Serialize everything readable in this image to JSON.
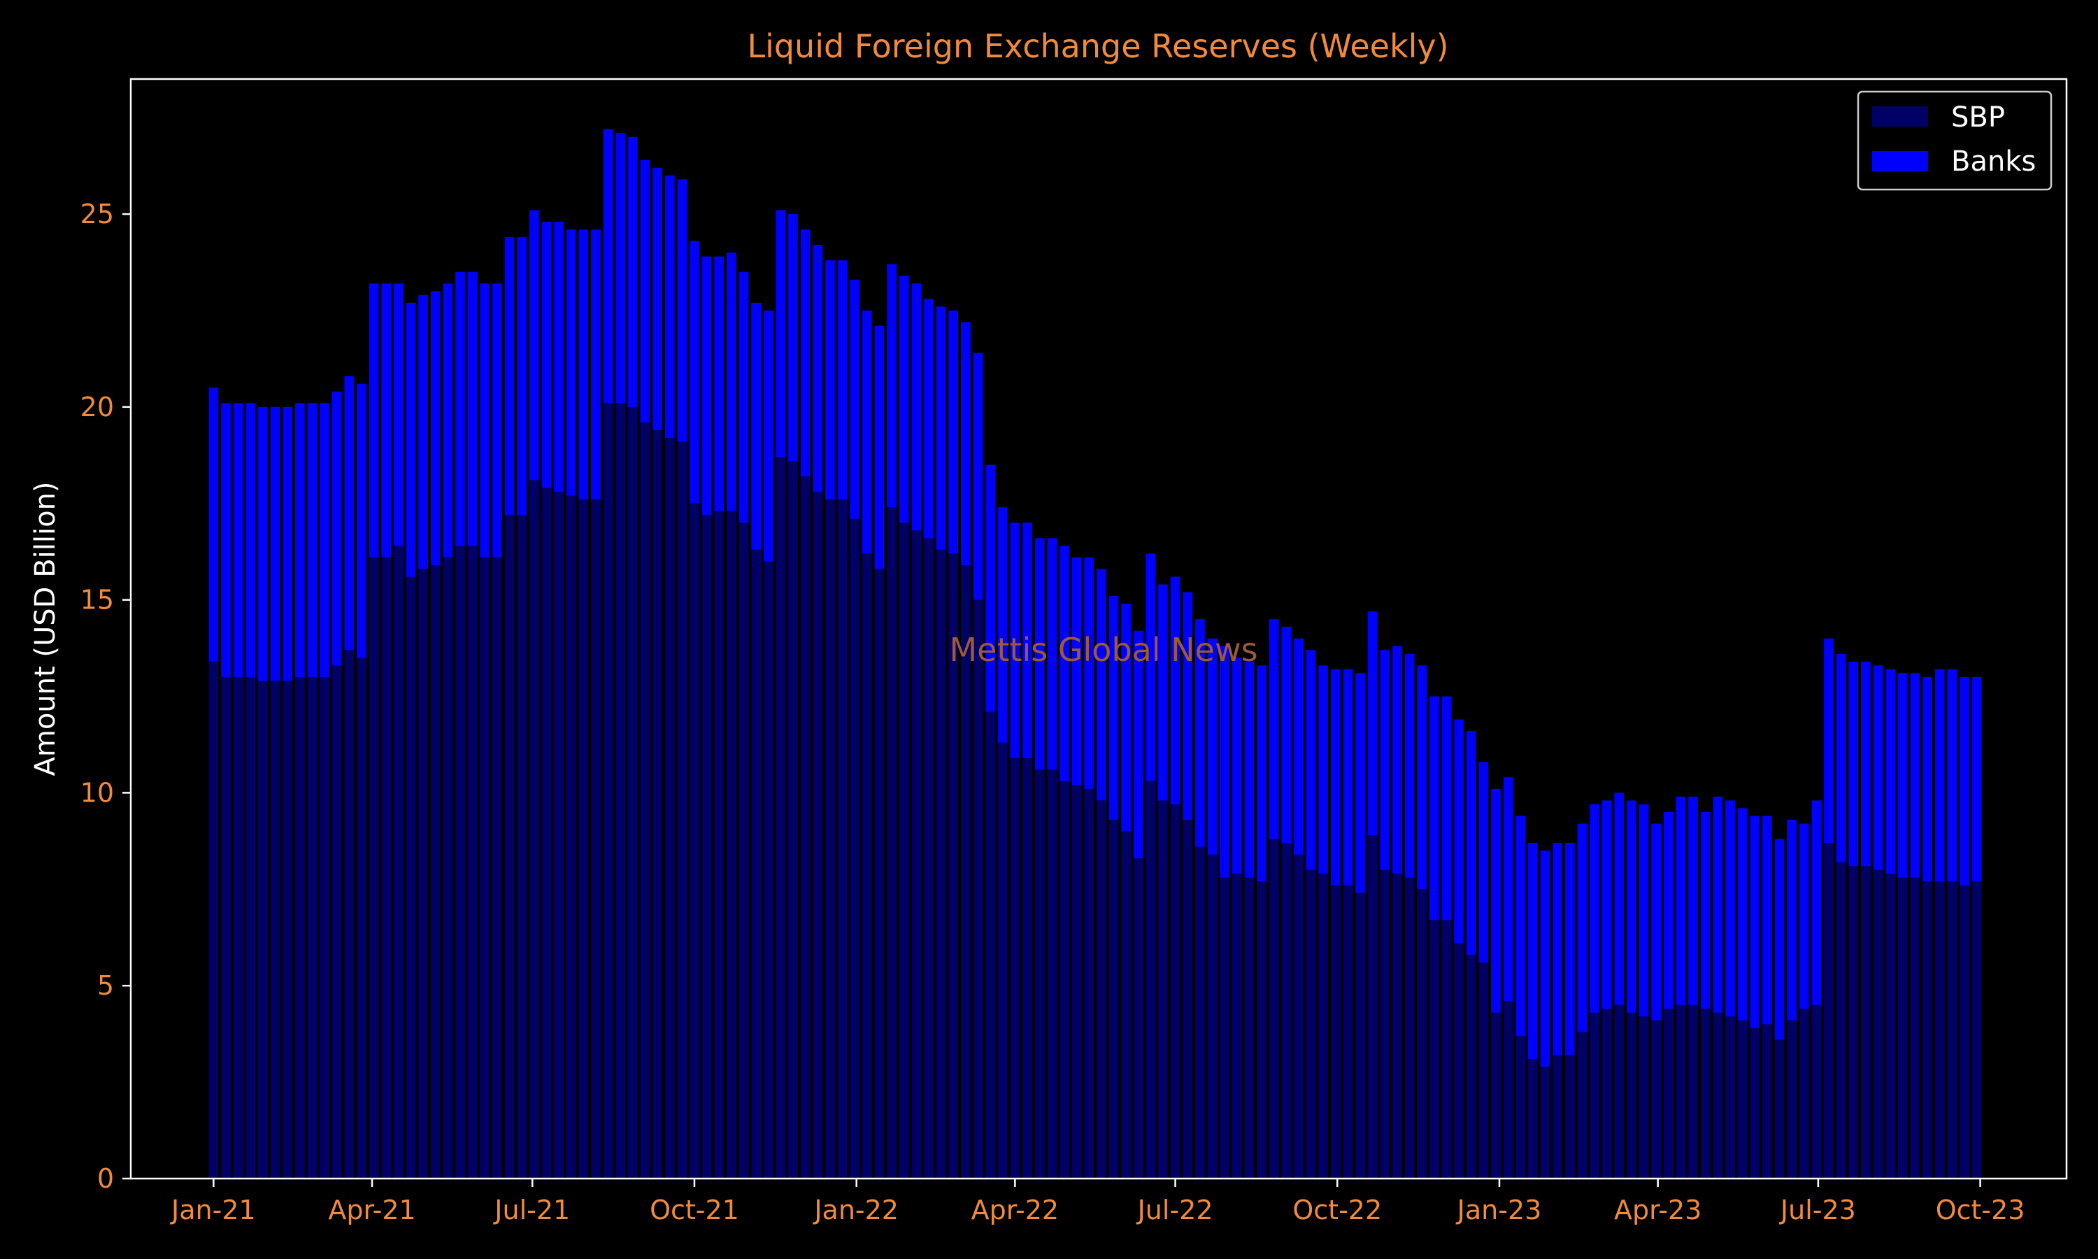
{
  "colors": {
    "background": "#000000",
    "accent": "#f08a3c",
    "axis": "#ffffff",
    "sbp": "#000066",
    "banks": "#0000ff",
    "watermark": "#9b5a3a"
  },
  "watermark": "Mettis Global News",
  "chart_data": {
    "type": "bar",
    "stacked": true,
    "title": "Liquid Foreign Exchange Reserves (Weekly)",
    "xlabel": "",
    "ylabel": "Amount (USD Billion)",
    "ylim": [
      0,
      28.5
    ],
    "xlim": [
      "2020-11-15",
      "2023-11-19"
    ],
    "yticks": [
      0,
      5,
      10,
      15,
      20,
      25
    ],
    "xticks": [
      {
        "date": "2021-01-01",
        "label": "Jan-21"
      },
      {
        "date": "2021-04-01",
        "label": "Apr-21"
      },
      {
        "date": "2021-07-01",
        "label": "Jul-21"
      },
      {
        "date": "2021-10-01",
        "label": "Oct-21"
      },
      {
        "date": "2022-01-01",
        "label": "Jan-22"
      },
      {
        "date": "2022-04-01",
        "label": "Apr-22"
      },
      {
        "date": "2022-07-01",
        "label": "Jul-22"
      },
      {
        "date": "2022-10-01",
        "label": "Oct-22"
      },
      {
        "date": "2023-01-01",
        "label": "Jan-23"
      },
      {
        "date": "2023-04-01",
        "label": "Apr-23"
      },
      {
        "date": "2023-07-01",
        "label": "Jul-23"
      },
      {
        "date": "2023-10-01",
        "label": "Oct-23"
      }
    ],
    "grid": false,
    "legend_position": "top-right",
    "x_start": "2021-01-01",
    "x_interval_days": 7,
    "series": [
      {
        "name": "SBP",
        "color": "#000066",
        "values": [
          13.4,
          13.0,
          13.0,
          13.0,
          12.9,
          12.9,
          12.9,
          13.0,
          13.0,
          13.0,
          13.3,
          13.7,
          13.5,
          16.1,
          16.1,
          16.4,
          15.6,
          15.8,
          15.9,
          16.1,
          16.4,
          16.4,
          16.1,
          16.1,
          17.2,
          17.2,
          18.1,
          17.9,
          17.8,
          17.7,
          17.6,
          17.6,
          20.1,
          20.1,
          20.0,
          19.6,
          19.4,
          19.2,
          19.1,
          17.5,
          17.2,
          17.3,
          17.3,
          17.0,
          16.3,
          16.0,
          18.7,
          18.6,
          18.2,
          17.8,
          17.6,
          17.6,
          17.1,
          16.2,
          15.8,
          17.4,
          17.0,
          16.8,
          16.6,
          16.3,
          16.2,
          15.9,
          15.0,
          12.1,
          11.3,
          10.9,
          10.9,
          10.6,
          10.6,
          10.3,
          10.2,
          10.1,
          9.8,
          9.3,
          9.0,
          8.3,
          10.3,
          9.8,
          9.7,
          9.3,
          8.6,
          8.4,
          7.8,
          7.9,
          7.8,
          7.7,
          8.8,
          8.7,
          8.4,
          8.0,
          7.9,
          7.6,
          7.6,
          7.4,
          8.9,
          8.0,
          7.9,
          7.8,
          7.5,
          6.7,
          6.7,
          6.1,
          5.8,
          5.6,
          4.3,
          4.6,
          3.7,
          3.1,
          2.9,
          3.2,
          3.2,
          3.8,
          4.3,
          4.4,
          4.5,
          4.3,
          4.2,
          4.1,
          4.4,
          4.5,
          4.5,
          4.4,
          4.3,
          4.2,
          4.1,
          3.9,
          4.0,
          3.6,
          4.1,
          4.4,
          4.5,
          8.7,
          8.2,
          8.1,
          8.1,
          8.0,
          7.9,
          7.8,
          7.8,
          7.7,
          7.7,
          7.7,
          7.6,
          7.7
        ]
      },
      {
        "name": "Banks",
        "color": "#0000ff",
        "values": [
          7.1,
          7.1,
          7.1,
          7.1,
          7.1,
          7.1,
          7.1,
          7.1,
          7.1,
          7.1,
          7.1,
          7.1,
          7.1,
          7.1,
          7.1,
          6.8,
          7.1,
          7.1,
          7.1,
          7.1,
          7.1,
          7.1,
          7.1,
          7.1,
          7.2,
          7.2,
          7.0,
          6.9,
          7.0,
          6.9,
          7.0,
          7.0,
          7.1,
          7.0,
          7.0,
          6.8,
          6.8,
          6.8,
          6.8,
          6.8,
          6.7,
          6.6,
          6.7,
          6.5,
          6.4,
          6.5,
          6.4,
          6.4,
          6.4,
          6.4,
          6.2,
          6.2,
          6.2,
          6.3,
          6.3,
          6.3,
          6.4,
          6.4,
          6.2,
          6.3,
          6.3,
          6.3,
          6.4,
          6.4,
          6.1,
          6.1,
          6.1,
          6.0,
          6.0,
          6.1,
          5.9,
          6.0,
          6.0,
          5.8,
          5.9,
          5.9,
          5.9,
          5.6,
          5.9,
          5.9,
          5.9,
          5.6,
          6.0,
          5.6,
          5.6,
          5.6,
          5.7,
          5.6,
          5.6,
          5.7,
          5.4,
          5.6,
          5.6,
          5.7,
          5.8,
          5.7,
          5.9,
          5.8,
          5.8,
          5.8,
          5.8,
          5.8,
          5.8,
          5.2,
          5.8,
          5.8,
          5.7,
          5.6,
          5.6,
          5.5,
          5.5,
          5.4,
          5.4,
          5.4,
          5.5,
          5.5,
          5.5,
          5.1,
          5.1,
          5.4,
          5.4,
          5.1,
          5.6,
          5.6,
          5.5,
          5.5,
          5.4,
          5.2,
          5.2,
          4.8,
          5.3,
          5.3,
          5.4,
          5.3,
          5.3,
          5.3,
          5.3,
          5.3,
          5.3,
          5.3,
          5.5,
          5.5,
          5.4,
          5.3
        ]
      }
    ]
  }
}
